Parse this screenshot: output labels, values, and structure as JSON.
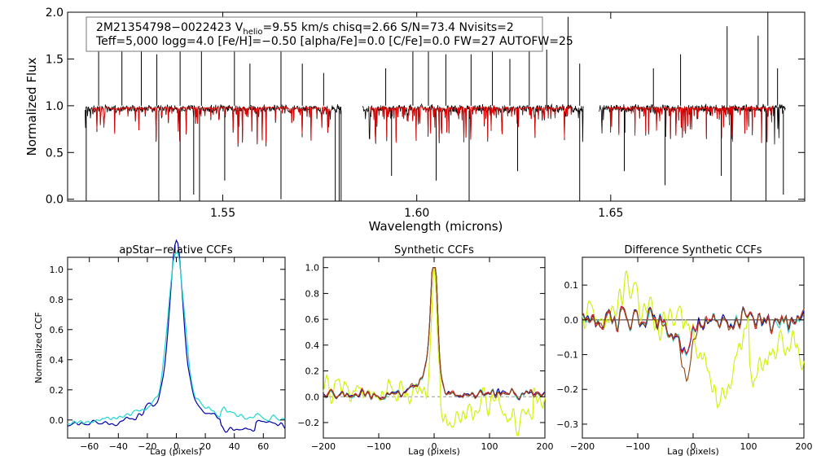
{
  "chart_data": [
    {
      "type": "line",
      "name": "spectrum",
      "info": {
        "line1_prefix": "2M21354798−0022423  V",
        "line1_sub": "helio",
        "line1_suffix": "=9.55 km/s  chisq=2.66  S/N=73.4  Nvisits=2",
        "line2": "Teff=5,000 logg=4.0 [Fe/H]=−0.50 [alpha/Fe]=0.0 [C/Fe]=0.0 FW=27 AUTOFW=25"
      },
      "xlabel": "Wavelength (microns)",
      "ylabel": "Normalized Flux",
      "xlim": [
        1.51,
        1.7
      ],
      "ylim": [
        -0.02,
        2.0
      ],
      "xticks": [
        1.55,
        1.6,
        1.65
      ],
      "xtick_labels": [
        "1.55",
        "1.60",
        "1.65"
      ],
      "yticks": [
        0.0,
        0.5,
        1.0,
        1.5,
        2.0
      ],
      "ytick_labels": [
        "0.0",
        "0.5",
        "1.0",
        "1.5",
        "2.0"
      ],
      "chips": [
        [
          1.5145,
          1.5805
        ],
        [
          1.586,
          1.643
        ],
        [
          1.647,
          1.695
        ]
      ],
      "series": [
        {
          "name": "observed",
          "color": "#000000"
        },
        {
          "name": "model",
          "color": "#e00000"
        }
      ],
      "emission_spikes": [
        [
          1.518,
          1.65
        ],
        [
          1.524,
          1.85
        ],
        [
          1.529,
          1.7
        ],
        [
          1.533,
          1.55
        ],
        [
          1.539,
          1.9
        ],
        [
          1.5445,
          1.6
        ],
        [
          1.553,
          1.75
        ],
        [
          1.557,
          1.45
        ],
        [
          1.565,
          1.8
        ],
        [
          1.5705,
          1.45
        ],
        [
          1.576,
          1.35
        ],
        [
          1.592,
          1.4
        ],
        [
          1.599,
          1.6
        ],
        [
          1.603,
          1.75
        ],
        [
          1.6075,
          1.55
        ],
        [
          1.614,
          1.55
        ],
        [
          1.6195,
          1.6
        ],
        [
          1.624,
          1.5
        ],
        [
          1.629,
          1.7
        ],
        [
          1.6335,
          1.6
        ],
        [
          1.639,
          1.95
        ],
        [
          1.642,
          1.45
        ],
        [
          1.661,
          1.4
        ],
        [
          1.668,
          1.55
        ],
        [
          1.68,
          1.85
        ],
        [
          1.688,
          1.75
        ],
        [
          1.6905,
          2.0
        ],
        [
          1.693,
          1.4
        ]
      ],
      "absorption_spikes": [
        [
          1.5148,
          -0.02
        ],
        [
          1.5335,
          -0.02
        ],
        [
          1.539,
          -0.02
        ],
        [
          1.5425,
          0.05
        ],
        [
          1.544,
          -0.02
        ],
        [
          1.5505,
          0.2
        ],
        [
          1.565,
          0.0
        ],
        [
          1.579,
          -0.02
        ],
        [
          1.58,
          -0.02
        ],
        [
          1.5805,
          -0.02
        ],
        [
          1.5935,
          0.25
        ],
        [
          1.605,
          0.2
        ],
        [
          1.6135,
          -0.02
        ],
        [
          1.626,
          0.3
        ],
        [
          1.642,
          -0.02
        ],
        [
          1.6535,
          0.3
        ],
        [
          1.664,
          0.15
        ],
        [
          1.6785,
          0.25
        ],
        [
          1.681,
          -0.02
        ],
        [
          1.69,
          -0.02
        ],
        [
          1.6945,
          0.05
        ]
      ]
    },
    {
      "type": "line",
      "name": "apstar-ccf",
      "title": "apStar−relative CCFs",
      "xlabel": "Lag (pixels)",
      "ylabel": "Normalized CCF",
      "xlim": [
        -75,
        75
      ],
      "ylim": [
        -0.12,
        1.08
      ],
      "xticks": [
        -60,
        -40,
        -20,
        0,
        20,
        40,
        60
      ],
      "xtick_labels": [
        "−60",
        "−40",
        "−20",
        "0",
        "20",
        "40",
        "60"
      ],
      "yticks": [
        0.0,
        0.2,
        0.4,
        0.6,
        0.8,
        1.0
      ],
      "ytick_labels": [
        "0.0",
        "0.2",
        "0.4",
        "0.6",
        "0.8",
        "1.0"
      ],
      "series": [
        {
          "name": "ccf-1",
          "color": "#0000aa",
          "peak": 1.0,
          "width": 4.5,
          "wing": 0.22,
          "wing_width": 16,
          "base": -0.03
        },
        {
          "name": "ccf-2",
          "color": "#20d8d0",
          "peak": 0.98,
          "width": 5.5,
          "wing": 0.16,
          "wing_width": 24,
          "base": -0.02
        }
      ]
    },
    {
      "type": "line",
      "name": "synthetic-ccf",
      "title": "Synthetic CCFs",
      "xlabel": "Lag (pixels)",
      "ylabel": "",
      "xlim": [
        -200,
        200
      ],
      "ylim": [
        -0.32,
        1.08
      ],
      "xticks": [
        -200,
        -100,
        0,
        100,
        200
      ],
      "xtick_labels": [
        "−200",
        "−100",
        "0",
        "100",
        "200"
      ],
      "yticks": [
        -0.2,
        0.0,
        0.2,
        0.4,
        0.6,
        0.8,
        1.0
      ],
      "ytick_labels": [
        "−0.2",
        "0.0",
        "0.2",
        "0.4",
        "0.6",
        "0.8",
        "1.0"
      ],
      "zero_line": true,
      "series": [
        {
          "name": "ccf-1",
          "color": "#d0f000"
        },
        {
          "name": "ccf-2",
          "color": "#0000aa"
        },
        {
          "name": "ccf-3",
          "color": "#20d8d0"
        },
        {
          "name": "ccf-4",
          "color": "#e02020"
        },
        {
          "name": "ccf-5",
          "color": "#8b4513"
        }
      ]
    },
    {
      "type": "line",
      "name": "difference-ccf",
      "title": "Difference Synthetic CCFs",
      "xlabel": "Lag (pixels)",
      "ylabel": "",
      "xlim": [
        -200,
        200
      ],
      "ylim": [
        -0.34,
        0.18
      ],
      "xticks": [
        -200,
        -100,
        0,
        100,
        200
      ],
      "xtick_labels": [
        "−200",
        "−100",
        "0",
        "100",
        "200"
      ],
      "yticks": [
        -0.3,
        -0.2,
        -0.1,
        0.0,
        0.1
      ],
      "ytick_labels": [
        "−0.3",
        "−0.2",
        "−0.1",
        "0.0",
        "0.1"
      ],
      "zero_line": true,
      "series": [
        {
          "name": "diff-1",
          "color": "#d0f000"
        },
        {
          "name": "diff-2",
          "color": "#0000aa"
        },
        {
          "name": "diff-3",
          "color": "#20d8d0"
        },
        {
          "name": "diff-4",
          "color": "#e02020"
        },
        {
          "name": "diff-5",
          "color": "#8b4513"
        }
      ]
    }
  ]
}
